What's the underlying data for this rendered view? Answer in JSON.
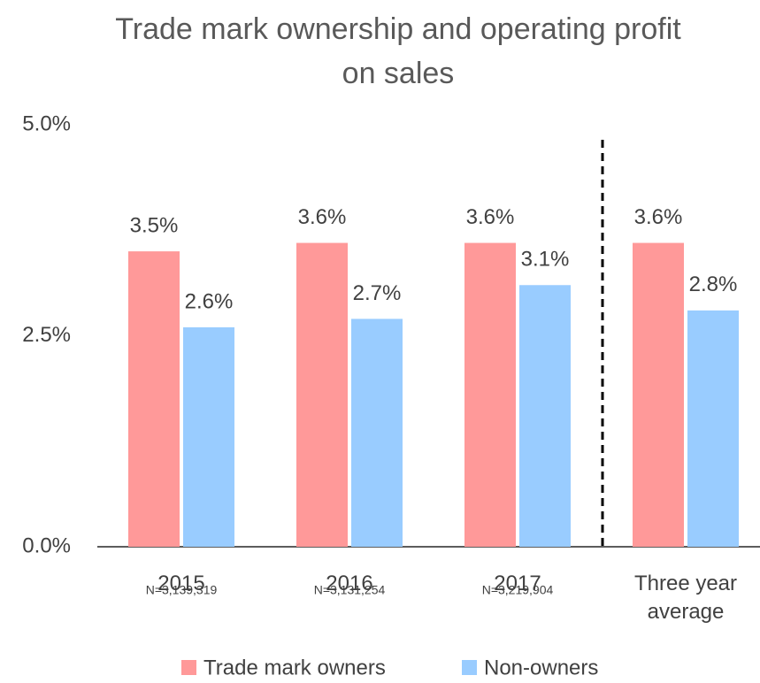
{
  "chart_data": {
    "type": "bar",
    "title": "Trade mark ownership and operating profit on sales",
    "categories": [
      "2015",
      "2016",
      "2017",
      "Three year average"
    ],
    "annotations": [
      "N=3,139,319",
      "N=3,131,254",
      "N=3,219,904"
    ],
    "series": [
      {
        "name": "Trade mark owners",
        "color": "#ff9999",
        "values": [
          3.5,
          3.6,
          3.6,
          3.6
        ],
        "value_labels": [
          "3.5%",
          "3.6%",
          "3.6%",
          "3.6%"
        ]
      },
      {
        "name": "Non-owners",
        "color": "#99ccff",
        "values": [
          2.6,
          2.7,
          3.1,
          2.8
        ],
        "value_labels": [
          "2.6%",
          "2.7%",
          "3.1%",
          "2.8%"
        ]
      }
    ],
    "ylim": [
      0,
      5
    ],
    "yticks": [
      {
        "value": 0,
        "label": "0.0%"
      },
      {
        "value": 2.5,
        "label": "2.5%"
      },
      {
        "value": 5,
        "label": "5.0%"
      }
    ],
    "grid": false,
    "legend": "bottom"
  }
}
